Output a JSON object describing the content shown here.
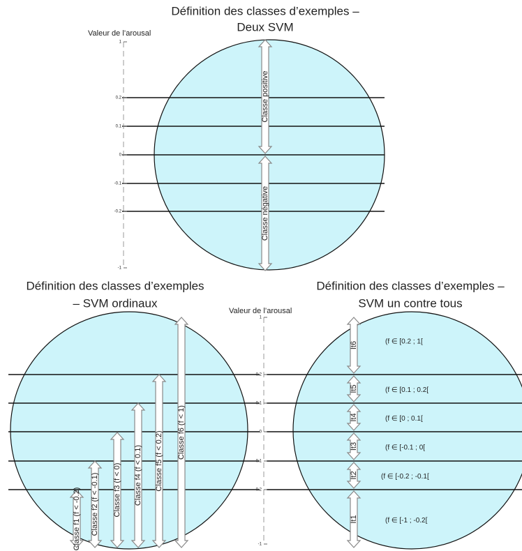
{
  "top": {
    "title": [
      "Définition des classes d’exemples –",
      "Deux SVM"
    ],
    "axis_label": "Valeur de l’arousal",
    "ticks": [
      1,
      0.2,
      0.1,
      0,
      -0.1,
      -0.2,
      -1
    ],
    "arrows": [
      "Classe positive",
      "Classe négative"
    ]
  },
  "bottom_left": {
    "title": [
      "Définition des classes d’exemples",
      "– SVM ordinaux"
    ],
    "arrows": [
      "Classe f1 (f < -0.2)",
      "Classe f2 (f < -0.1)",
      "Classe f3 (f < 0)",
      "Classe f4 (f < 0.1)",
      "Classe f5 (f < 0.2)",
      "Classe f6 (f < 1)"
    ]
  },
  "middle_axis": {
    "axis_label": "Valeur de l’arousal",
    "ticks": [
      1,
      0.2,
      0.1,
      0,
      -0.1,
      -0.2,
      -1
    ]
  },
  "bottom_right": {
    "title": [
      "Définition des classes d’exemples –",
      "SVM un contre tous"
    ],
    "arrows": [
      "It6",
      "It5",
      "It4",
      "It3",
      "It2",
      "It1"
    ],
    "intervals": [
      "(f ∈ [0.2 ; 1[",
      "(f ∈ [0.1 ; 0.2[",
      "(f ∈ [0 ; 0.1[",
      "(f ∈ [-0.1 ; 0[",
      "(f ∈ [-0.2 ; -0.1[",
      "(f ∈ [-1 ; -0.2["
    ]
  }
}
